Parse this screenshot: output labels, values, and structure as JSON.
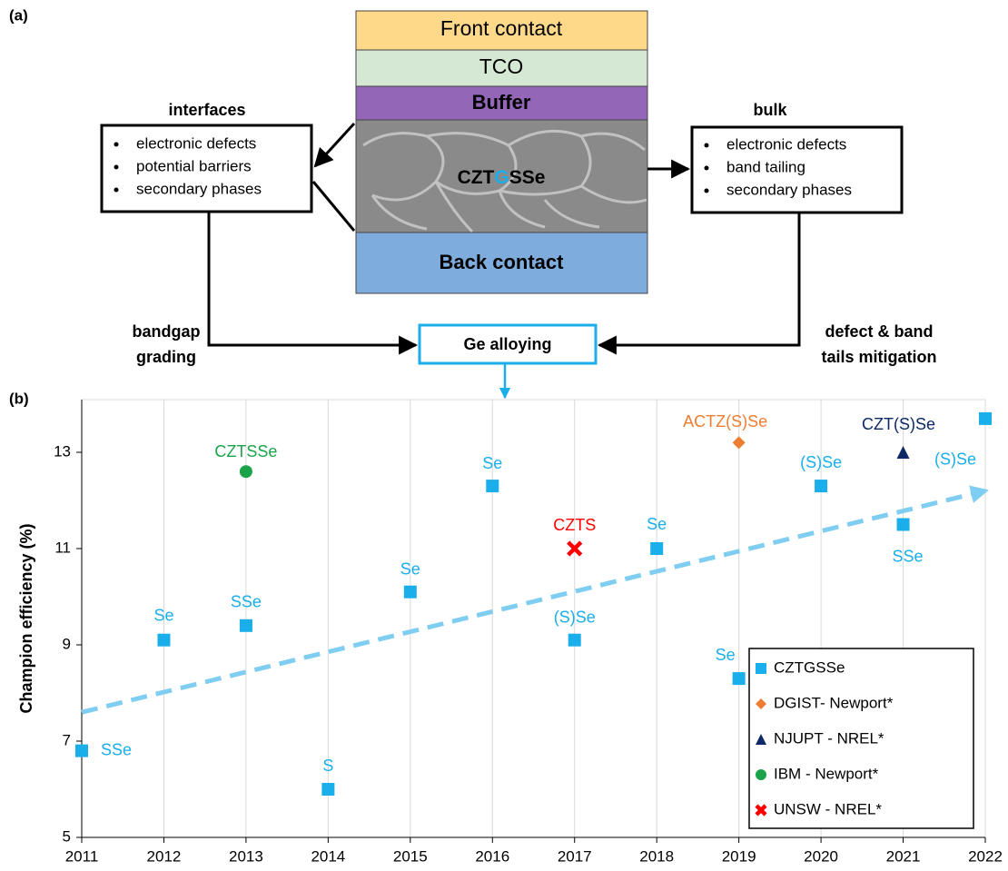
{
  "panel_labels": [
    "(a)",
    "(b)"
  ],
  "diagram": {
    "layers": [
      "Front contact",
      "TCO",
      "Buffer",
      "Back contact"
    ],
    "absorber_parts": [
      "CZT",
      "G",
      "SSe"
    ],
    "interfaces": {
      "title": "interfaces",
      "items": [
        "electronic defects",
        "potential barriers",
        "secondary phases"
      ]
    },
    "bulk": {
      "title": "bulk",
      "items": [
        "electronic defects",
        "band tailing",
        "secondary phases"
      ]
    },
    "left_path": [
      "bandgap",
      "grading"
    ],
    "right_path": [
      "defect & band",
      "tails mitigation"
    ],
    "center": "Ge alloying"
  },
  "chart_data": {
    "type": "scatter",
    "ylabel": "Champion efficiency (%)",
    "xlim": [
      2011,
      2022
    ],
    "xticks": [
      2011,
      2012,
      2013,
      2014,
      2015,
      2016,
      2017,
      2018,
      2019,
      2020,
      2021,
      2022
    ],
    "ylim": [
      5,
      14
    ],
    "yticks": [
      5,
      7,
      9,
      11,
      13
    ],
    "grid": "x",
    "series": [
      {
        "name": "CZTGSSe",
        "color": "#1aaeea",
        "marker": "square",
        "x": [
          2011,
          2012,
          2013,
          2014,
          2015,
          2016,
          2017,
          2018,
          2019,
          2020,
          2021,
          2022
        ],
        "values": [
          6.8,
          9.1,
          9.4,
          6.0,
          10.1,
          12.3,
          9.1,
          11.0,
          8.3,
          12.3,
          11.5,
          13.7
        ],
        "point_labels": [
          "SSe",
          "Se",
          "SSe",
          "S",
          "Se",
          "Se",
          "(S)Se",
          "Se",
          "Se",
          "(S)Se",
          "SSe",
          "(S)Se"
        ]
      },
      {
        "name": "DGIST- Newport*",
        "color": "#ed7d31",
        "marker": "diamond",
        "x": [
          2019
        ],
        "values": [
          13.2
        ],
        "point_labels": [
          "ACTZ(S)Se"
        ]
      },
      {
        "name": "NJUPT - NREL*",
        "color": "#0d2a66",
        "marker": "triangle",
        "x": [
          2021
        ],
        "values": [
          13.0
        ],
        "point_labels": [
          "CZT(S)Se"
        ]
      },
      {
        "name": "IBM - Newport*",
        "color": "#1ba34a",
        "marker": "circle",
        "x": [
          2013
        ],
        "values": [
          12.6
        ],
        "point_labels": [
          "CZTSSe"
        ]
      },
      {
        "name": "UNSW - NREL*",
        "color": "#ff0000",
        "marker": "cross",
        "x": [
          2017
        ],
        "values": [
          11.0
        ],
        "point_labels": [
          "CZTS"
        ]
      }
    ],
    "trendline": {
      "color": "#7fcdf0",
      "x": [
        2011,
        2022
      ],
      "values": [
        7.6,
        12.2
      ]
    }
  }
}
